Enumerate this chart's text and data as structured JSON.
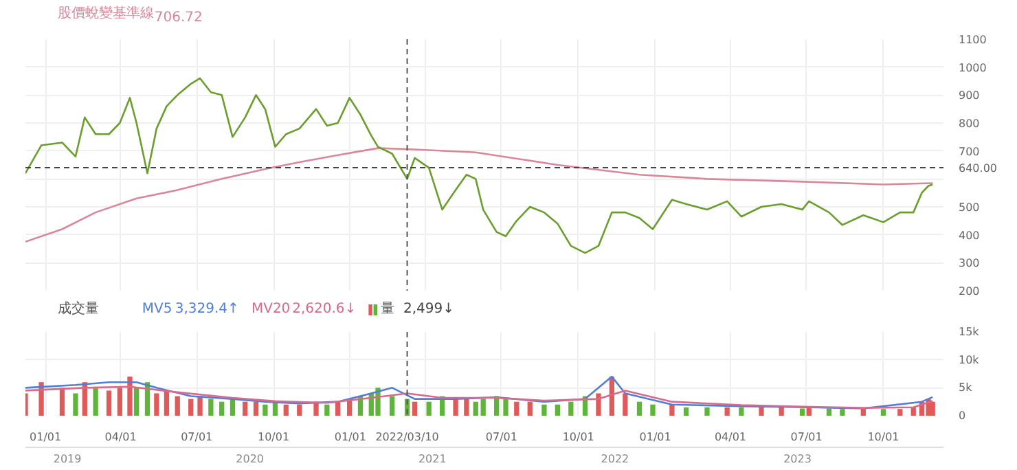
{
  "chart_data": [
    {
      "type": "line",
      "tick_labels": "y",
      "grid": true,
      "xlim": [
        "2020-12-08",
        "2023-12-12"
      ],
      "ylim": [
        200,
        1100
      ],
      "yticks": [
        200,
        300,
        400,
        500,
        {
          "value": 600,
          "label": null
        },
        700,
        800,
        900,
        1000,
        1100
      ],
      "xticks": [
        "2021-01-01",
        "2021-04-01",
        "2021-07-01",
        "2021-10-01",
        "2022-01-01",
        "2022-04-01",
        "2022-07-01",
        "2022-10-01",
        "2023-01-01",
        "2023-04-01",
        "2023-07-01",
        "2023-10-01"
      ],
      "annotations": [
        "706.72"
      ],
      "ref_lines": [
        {
          "axis": "y",
          "value": 640,
          "label": "640.00",
          "color": "#444444",
          "line_style": "dashed"
        },
        {
          "axis": "x",
          "value": "2022-03-10",
          "label": null,
          "color": "#555555",
          "line_style": "dashed"
        }
      ],
      "series": [
        {
          "name": "股價蛻變基準線",
          "color": "#d9879b",
          "x": [
            "2020-12-08",
            "2021-01-21",
            "2021-03-02",
            "2021-04-20",
            "2021-06-08",
            "2021-07-31",
            "2021-09-21",
            "2021-11-01",
            "2021-12-17",
            "2022-02-03",
            "2022-03-10",
            "2022-05-31",
            "2022-09-06",
            "2022-12-13",
            "2023-03-04",
            "2023-06-26",
            "2023-10-01",
            "2023-11-29"
          ],
          "values": [
            375,
            420,
            480,
            530,
            560,
            600,
            635,
            660,
            685,
            710,
            706.72,
            695,
            650,
            615,
            600,
            590,
            580,
            585
          ]
        },
        {
          "color": "#6b9e2e",
          "x": [
            "2020-12-08",
            "2020-12-27",
            "2021-01-21",
            "2021-02-06",
            "2021-02-17",
            "2021-03-02",
            "2021-03-18",
            "2021-03-31",
            "2021-04-12",
            "2021-04-20",
            "2021-05-03",
            "2021-05-14",
            "2021-05-26",
            "2021-06-08",
            "2021-06-24",
            "2021-07-05",
            "2021-07-18",
            "2021-07-31",
            "2021-08-13",
            "2021-08-28",
            "2021-09-10",
            "2021-09-21",
            "2021-10-03",
            "2021-10-16",
            "2021-11-01",
            "2021-11-21",
            "2021-12-04",
            "2021-12-17",
            "2021-12-31",
            "2022-01-13",
            "2022-01-26",
            "2022-02-03",
            "2022-02-20",
            "2022-03-10",
            "2022-03-19",
            "2022-04-05",
            "2022-04-21",
            "2022-05-07",
            "2022-05-20",
            "2022-05-31",
            "2022-06-09",
            "2022-06-25",
            "2022-07-06",
            "2022-07-19",
            "2022-08-04",
            "2022-08-21",
            "2022-09-06",
            "2022-09-22",
            "2022-10-09",
            "2022-10-25",
            "2022-11-10",
            "2022-11-26",
            "2022-12-13",
            "2022-12-29",
            "2023-01-21",
            "2023-02-07",
            "2023-03-04",
            "2023-03-28",
            "2023-04-14",
            "2023-05-08",
            "2023-06-01",
            "2023-06-26",
            "2023-07-04",
            "2023-07-28",
            "2023-08-13",
            "2023-09-07",
            "2023-10-01",
            "2023-10-21",
            "2023-11-06",
            "2023-11-16",
            "2023-11-24",
            "2023-11-29"
          ],
          "values": [
            620,
            720,
            730,
            680,
            820,
            760,
            760,
            800,
            890,
            800,
            620,
            780,
            860,
            900,
            940,
            960,
            910,
            900,
            750,
            820,
            900,
            850,
            715,
            760,
            780,
            850,
            790,
            800,
            890,
            830,
            755,
            715,
            690,
            600,
            675,
            640,
            490,
            560,
            615,
            600,
            490,
            410,
            395,
            450,
            500,
            480,
            440,
            360,
            335,
            360,
            480,
            480,
            460,
            420,
            525,
            510,
            490,
            520,
            465,
            500,
            510,
            490,
            520,
            480,
            435,
            470,
            445,
            480,
            480,
            550,
            575,
            580
          ]
        }
      ]
    },
    {
      "type": "bar",
      "title": "成交量",
      "grid": true,
      "xlim": [
        "2020-12-08",
        "2023-12-12"
      ],
      "ylim": [
        0,
        15000
      ],
      "yticks": [
        0,
        {
          "value": 5000,
          "label": "5k"
        },
        {
          "value": 10000,
          "label": "10k"
        },
        {
          "value": 15000,
          "label": "15k"
        }
      ],
      "xticks": [
        {
          "value": "2021-01-01",
          "label": "01/01"
        },
        {
          "value": "2021-04-01",
          "label": "04/01"
        },
        {
          "value": "2021-07-01",
          "label": "07/01"
        },
        {
          "value": "2021-10-01",
          "label": "10/01"
        },
        {
          "value": "2022-01-01",
          "label": "01/01"
        },
        {
          "value": "2022-04-01",
          "label": null
        },
        {
          "value": "2022-07-01",
          "label": "07/01"
        },
        {
          "value": "2022-10-01",
          "label": "10/01"
        },
        {
          "value": "2023-01-01",
          "label": "01/01"
        },
        {
          "value": "2023-04-01",
          "label": "04/01"
        },
        {
          "value": "2023-07-01",
          "label": "07/01"
        },
        {
          "value": "2023-10-01",
          "label": "10/01"
        }
      ],
      "annotations": [
        "3,329.4↑",
        "2,620.6↓",
        "2,499↓"
      ],
      "x2lim": [
        2018.77,
        2023.8
      ],
      "x2ticks": [
        2019,
        2020,
        2021,
        2022,
        2023
      ],
      "ref_lines": [
        {
          "axis": "x",
          "value": "2022-03-10",
          "label": "2022/03/10",
          "color": "#555555",
          "line_style": "dashed"
        }
      ],
      "series": [
        {
          "name": "MV5",
          "type": "line",
          "color": "#4f7fd6",
          "x": [
            "2020-12-08",
            "2021-02-06",
            "2021-03-18",
            "2021-04-20",
            "2021-05-14",
            "2021-06-24",
            "2021-08-13",
            "2021-09-21",
            "2021-11-01",
            "2021-12-17",
            "2022-01-26",
            "2022-02-20",
            "2022-03-19",
            "2022-05-07",
            "2022-06-25",
            "2022-08-21",
            "2022-10-09",
            "2022-11-10",
            "2022-11-26",
            "2023-01-21",
            "2023-04-14",
            "2023-07-04",
            "2023-09-07",
            "2023-11-16",
            "2023-11-29"
          ],
          "values": [
            5000,
            5500,
            6000,
            6000,
            5000,
            3500,
            3000,
            2500,
            2200,
            2500,
            4000,
            5000,
            3000,
            3000,
            3300,
            2500,
            3000,
            7000,
            4000,
            2000,
            1700,
            1500,
            1300,
            2500,
            3329.4
          ]
        },
        {
          "name": "MV20",
          "type": "line",
          "color": "#d86a8c",
          "x": [
            "2020-12-08",
            "2021-02-17",
            "2021-04-12",
            "2021-06-08",
            "2021-08-13",
            "2021-10-03",
            "2021-12-04",
            "2022-01-26",
            "2022-03-10",
            "2022-04-21",
            "2022-06-25",
            "2022-08-21",
            "2022-10-25",
            "2022-11-26",
            "2023-01-21",
            "2023-04-14",
            "2023-07-04",
            "2023-09-07",
            "2023-11-06",
            "2023-11-29"
          ],
          "values": [
            4500,
            5000,
            5200,
            4200,
            3200,
            2600,
            2300,
            3200,
            4000,
            3200,
            3200,
            2700,
            3000,
            4500,
            2500,
            1900,
            1600,
            1400,
            1500,
            2620.6
          ]
        },
        {
          "name": "量",
          "type": "bar",
          "colors": [
            "#e05a5a",
            "#e05a5a",
            "#e05a5a",
            "#5fb53a",
            "#e05a5a",
            "#5fb53a",
            "#e05a5a",
            "#e05a5a",
            "#e05a5a",
            "#5fb53a",
            "#5fb53a",
            "#e05a5a",
            "#e05a5a",
            "#e05a5a",
            "#e05a5a",
            "#e05a5a",
            "#5fb53a",
            "#5fb53a",
            "#5fb53a",
            "#e05a5a",
            "#e05a5a",
            "#5fb53a",
            "#5fb53a",
            "#e05a5a",
            "#e05a5a",
            "#e05a5a",
            "#5fb53a",
            "#e05a5a",
            "#e05a5a",
            "#5fb53a",
            "#5fb53a",
            "#5fb53a",
            "#5fb53a",
            "#5fb53a",
            "#e05a5a",
            "#5fb53a",
            "#5fb53a",
            "#e05a5a",
            "#e05a5a",
            "#5fb53a",
            "#5fb53a",
            "#5fb53a",
            "#5fb53a",
            "#e05a5a",
            "#e05a5a",
            "#5fb53a",
            "#5fb53a",
            "#5fb53a",
            "#5fb53a",
            "#e05a5a",
            "#e05a5a",
            "#e05a5a",
            "#5fb53a",
            "#5fb53a",
            "#e05a5a",
            "#5fb53a",
            "#5fb53a",
            "#e05a5a",
            "#5fb53a",
            "#e05a5a",
            "#e05a5a",
            "#5fb53a",
            "#e05a5a",
            "#5fb53a",
            "#5fb53a",
            "#e05a5a",
            "#5fb53a",
            "#e05a5a",
            "#e05a5a",
            "#e05a5a",
            "#e05a5a",
            "#e05a5a"
          ],
          "x": [
            "2020-12-08",
            "2020-12-27",
            "2021-01-21",
            "2021-02-06",
            "2021-02-17",
            "2021-03-02",
            "2021-03-18",
            "2021-03-31",
            "2021-04-12",
            "2021-04-20",
            "2021-05-03",
            "2021-05-14",
            "2021-05-26",
            "2021-06-08",
            "2021-06-24",
            "2021-07-05",
            "2021-07-18",
            "2021-07-31",
            "2021-08-13",
            "2021-08-28",
            "2021-09-10",
            "2021-09-21",
            "2021-10-03",
            "2021-10-16",
            "2021-11-01",
            "2021-11-21",
            "2021-12-04",
            "2021-12-17",
            "2021-12-31",
            "2022-01-13",
            "2022-01-26",
            "2022-02-03",
            "2022-02-20",
            "2022-03-10",
            "2022-03-19",
            "2022-04-05",
            "2022-04-21",
            "2022-05-07",
            "2022-05-20",
            "2022-05-31",
            "2022-06-09",
            "2022-06-25",
            "2022-07-06",
            "2022-07-19",
            "2022-08-04",
            "2022-08-21",
            "2022-09-06",
            "2022-09-22",
            "2022-10-09",
            "2022-10-25",
            "2022-11-10",
            "2022-11-26",
            "2022-12-13",
            "2022-12-29",
            "2023-01-21",
            "2023-02-07",
            "2023-03-04",
            "2023-03-28",
            "2023-04-14",
            "2023-05-08",
            "2023-06-01",
            "2023-06-26",
            "2023-07-04",
            "2023-07-28",
            "2023-08-13",
            "2023-09-07",
            "2023-10-01",
            "2023-10-21",
            "2023-11-06",
            "2023-11-16",
            "2023-11-24",
            "2023-11-29"
          ],
          "values": [
            4000,
            6000,
            5000,
            4000,
            6000,
            5000,
            4500,
            5000,
            7000,
            5000,
            6000,
            4000,
            4500,
            3500,
            3000,
            3500,
            3000,
            2500,
            3000,
            2500,
            2500,
            2000,
            2500,
            2000,
            2000,
            2500,
            2000,
            2500,
            3000,
            3500,
            4000,
            5000,
            3500,
            3000,
            2500,
            2500,
            3500,
            3000,
            3000,
            2500,
            3000,
            3500,
            3000,
            2500,
            2500,
            2000,
            2000,
            2500,
            3500,
            4000,
            7000,
            4000,
            2500,
            2000,
            2000,
            1500,
            1500,
            1500,
            1500,
            1500,
            1500,
            1300,
            1500,
            1300,
            1200,
            1200,
            1200,
            1200,
            1500,
            2500,
            3000,
            2499
          ]
        }
      ]
    }
  ]
}
